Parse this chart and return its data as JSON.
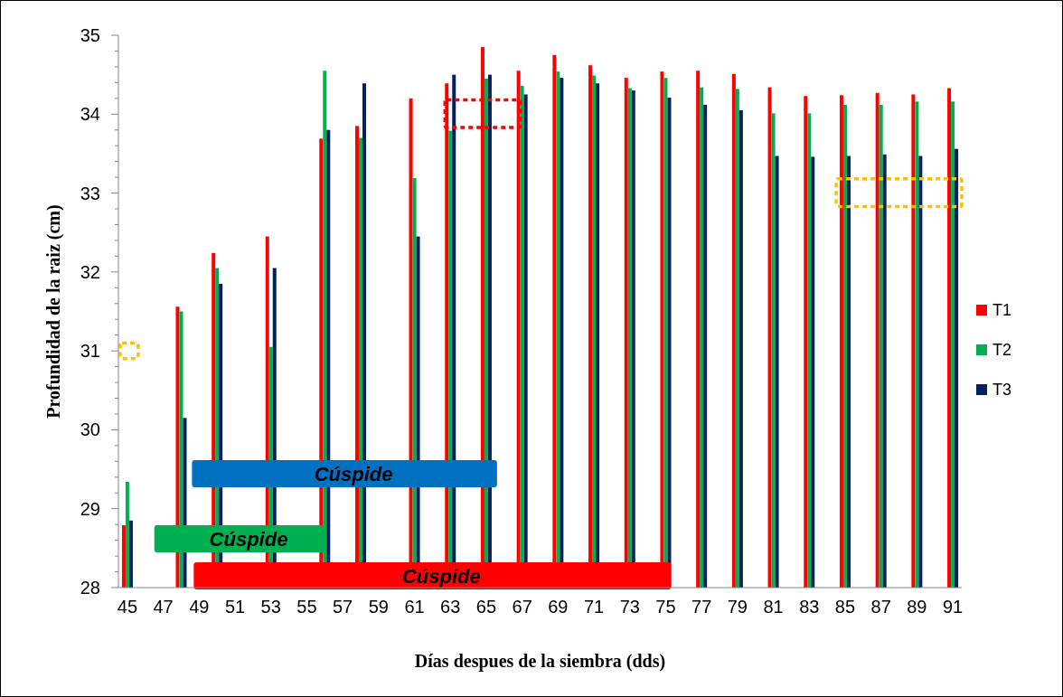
{
  "chart_data": {
    "type": "bar",
    "xlabel": "Días despues de la siembra (dds)",
    "ylabel": "Profundidad de la raiz (cm)",
    "x": [
      45,
      48,
      50,
      53,
      56,
      58,
      61,
      63,
      65,
      67,
      69,
      71,
      73,
      75,
      77,
      79,
      81,
      83,
      85,
      87,
      89,
      91
    ],
    "xlim": [
      44.5,
      91.5
    ],
    "xticks": [
      45,
      47,
      49,
      51,
      53,
      55,
      57,
      59,
      61,
      63,
      65,
      67,
      69,
      71,
      73,
      75,
      77,
      79,
      81,
      83,
      85,
      87,
      89,
      91
    ],
    "ylim": [
      28,
      35
    ],
    "yticks": [
      28,
      29,
      30,
      31,
      32,
      33,
      34,
      35
    ],
    "series": [
      {
        "name": "T1",
        "color": "#ff0000",
        "values": [
          28.79,
          31.56,
          32.24,
          32.45,
          33.69,
          33.85,
          34.2,
          34.39,
          34.85,
          34.55,
          34.75,
          34.62,
          34.46,
          34.54,
          34.55,
          34.51,
          34.34,
          34.23,
          34.24,
          34.27,
          34.25,
          34.33
        ]
      },
      {
        "name": "T2",
        "color": "#00b050",
        "values": [
          29.34,
          31.5,
          32.05,
          31.05,
          34.55,
          33.7,
          33.19,
          33.79,
          34.45,
          34.36,
          34.54,
          34.49,
          34.33,
          34.46,
          34.34,
          34.32,
          34.01,
          34.01,
          34.12,
          34.12,
          34.16,
          34.16
        ]
      },
      {
        "name": "T3",
        "color": "#002060",
        "values": [
          28.85,
          30.15,
          31.85,
          32.05,
          33.8,
          34.39,
          32.45,
          34.5,
          34.5,
          34.25,
          34.46,
          34.39,
          34.3,
          34.21,
          34.12,
          34.05,
          33.47,
          33.46,
          33.47,
          33.49,
          33.47,
          33.56
        ]
      }
    ],
    "annotations": [
      "Cúspide",
      "Cúspide",
      "Cúspide"
    ],
    "legend": "right",
    "grid": false
  }
}
